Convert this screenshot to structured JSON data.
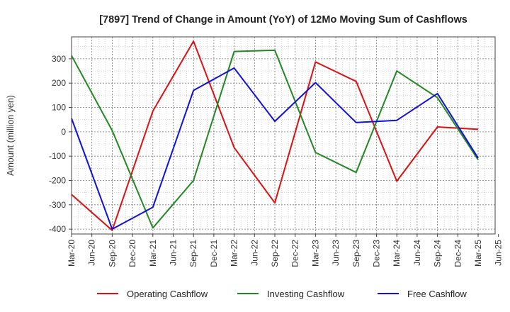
{
  "chart_data": {
    "type": "line",
    "title": "[7897]  Trend of Change in Amount (YoY) of 12Mo Moving Sum of Cashflows",
    "xlabel": "",
    "ylabel": "Amount (million yen)",
    "ylim": [
      -420,
      390
    ],
    "yticks": [
      300,
      200,
      100,
      0,
      -100,
      -200,
      -300,
      -400
    ],
    "grid": true,
    "legend_position": "bottom",
    "categories": [
      "Mar-20",
      "Jun-20",
      "Sep-20",
      "Dec-20",
      "Mar-21",
      "Jun-21",
      "Sep-21",
      "Dec-21",
      "Mar-22",
      "Jun-22",
      "Sep-22",
      "Dec-22",
      "Mar-23",
      "Jun-23",
      "Sep-23",
      "Dec-23",
      "Mar-24",
      "Jun-24",
      "Sep-24",
      "Dec-24",
      "Mar-25",
      "Jun-25"
    ],
    "series": [
      {
        "name": "Operating Cashflow",
        "color": "#dd1111",
        "points": [
          {
            "x": "Mar-20",
            "y": -258
          },
          {
            "x": "Sep-20",
            "y": -405
          },
          {
            "x": "Mar-21",
            "y": 85
          },
          {
            "x": "Sep-21",
            "y": 372
          },
          {
            "x": "Mar-22",
            "y": -65
          },
          {
            "x": "Sep-22",
            "y": -292
          },
          {
            "x": "Mar-23",
            "y": 287
          },
          {
            "x": "Sep-23",
            "y": 207
          },
          {
            "x": "Mar-24",
            "y": -203
          },
          {
            "x": "Sep-24",
            "y": 20
          },
          {
            "x": "Mar-25",
            "y": 10
          }
        ]
      },
      {
        "name": "Investing Cashflow",
        "color": "#228822",
        "points": [
          {
            "x": "Mar-20",
            "y": 313
          },
          {
            "x": "Sep-20",
            "y": 5
          },
          {
            "x": "Mar-21",
            "y": -395
          },
          {
            "x": "Sep-21",
            "y": -200
          },
          {
            "x": "Mar-22",
            "y": 330
          },
          {
            "x": "Sep-22",
            "y": 335
          },
          {
            "x": "Mar-23",
            "y": -85
          },
          {
            "x": "Sep-23",
            "y": -167
          },
          {
            "x": "Mar-24",
            "y": 250
          },
          {
            "x": "Sep-24",
            "y": 140
          },
          {
            "x": "Mar-25",
            "y": -115
          }
        ]
      },
      {
        "name": "Free Cashflow",
        "color": "#1111dd",
        "points": [
          {
            "x": "Mar-20",
            "y": 55
          },
          {
            "x": "Sep-20",
            "y": -400
          },
          {
            "x": "Mar-21",
            "y": -310
          },
          {
            "x": "Sep-21",
            "y": 170
          },
          {
            "x": "Mar-22",
            "y": 262
          },
          {
            "x": "Sep-22",
            "y": 43
          },
          {
            "x": "Mar-23",
            "y": 202
          },
          {
            "x": "Sep-23",
            "y": 38
          },
          {
            "x": "Mar-24",
            "y": 47
          },
          {
            "x": "Sep-24",
            "y": 157
          },
          {
            "x": "Mar-25",
            "y": -108
          }
        ]
      }
    ]
  }
}
